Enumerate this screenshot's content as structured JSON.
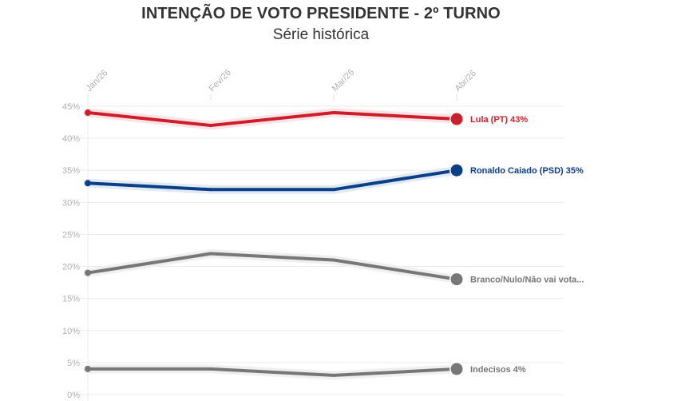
{
  "chart_data": {
    "type": "line",
    "title": "INTENÇÃO DE VOTO PRESIDENTE - 2º TURNO",
    "subtitle": "Série histórica",
    "xlabel": "",
    "ylabel": "",
    "categories": [
      "Jan/26",
      "Fev/26",
      "Mar/26",
      "Abr/26"
    ],
    "ylim": [
      0,
      45
    ],
    "yticks": [
      0,
      5,
      10,
      15,
      20,
      25,
      30,
      35,
      40,
      45
    ],
    "ytick_labels": [
      "0%",
      "5%",
      "10%",
      "15%",
      "20%",
      "25%",
      "30%",
      "35%",
      "40%",
      "45%"
    ],
    "grid": true,
    "series": [
      {
        "name": "Lula (PT)",
        "label": "Lula (PT) 43%",
        "color": "#cc1f2d",
        "halo": "#fbe3e5",
        "values": [
          44,
          42,
          44,
          43
        ]
      },
      {
        "name": "Ronaldo Caiado (PSD)",
        "label": "Ronaldo Caiado (PSD) 35%",
        "color": "#0b3f86",
        "halo": "#e1e9f4",
        "values": [
          33,
          32,
          32,
          35
        ]
      },
      {
        "name": "Branco/Nulo/Não vai votar",
        "label": "Branco/Nulo/Não vai vota...",
        "color": "#777777",
        "halo": "#f0f0f0",
        "values": [
          19,
          22,
          21,
          18
        ]
      },
      {
        "name": "Indecisos",
        "label": "Indecisos 4%",
        "color": "#777777",
        "halo": "#f0f0f0",
        "values": [
          4,
          4,
          3,
          4
        ]
      }
    ]
  }
}
